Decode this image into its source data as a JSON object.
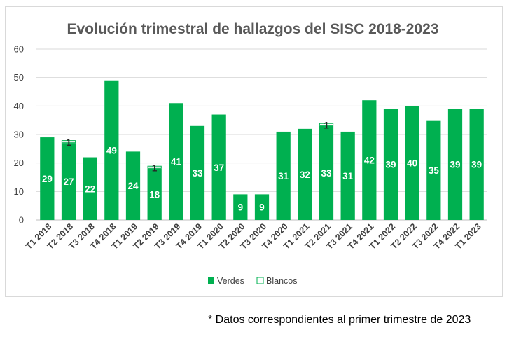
{
  "chart_data": {
    "type": "bar",
    "stacked": true,
    "title": "Evolución trimestral de hallazgos del SISC 2018-2023",
    "xlabel": "",
    "ylabel": "",
    "ylim": [
      0,
      60
    ],
    "yticks": [
      0,
      10,
      20,
      30,
      40,
      50,
      60
    ],
    "grid": true,
    "legend_position": "bottom",
    "categories": [
      "T1 2018",
      "T2 2018",
      "T3 2018",
      "T4 2018",
      "T1 2019",
      "T2 2019",
      "T3 2019",
      "T4 2019",
      "T1 2020",
      "T2 2020",
      "T3 2020",
      "T4 2020",
      "T1 2021",
      "T2 2021",
      "T3 2021",
      "T4 2021",
      "T1 2022",
      "T2 2022",
      "T3 2022",
      "T4 2022",
      "T1 2023"
    ],
    "series": [
      {
        "name": "Verdes",
        "color": "#00b050",
        "values": [
          29,
          27,
          22,
          49,
          24,
          18,
          41,
          33,
          37,
          9,
          9,
          31,
          32,
          33,
          31,
          42,
          39,
          40,
          35,
          39,
          39
        ],
        "labels": [
          "29",
          "27",
          "22",
          "49",
          "24",
          "18",
          "41",
          "33",
          "37",
          "9",
          "9",
          "31",
          "32",
          "33",
          "31",
          "42",
          "39",
          "40",
          "35",
          "39",
          "39"
        ]
      },
      {
        "name": "Blancos",
        "color": "#ffffff",
        "border": "#00b050",
        "values": [
          0,
          1,
          0,
          0,
          0,
          1,
          0,
          0,
          0,
          0,
          0,
          0,
          0,
          1,
          0,
          0,
          0,
          0,
          0,
          0,
          0
        ],
        "labels": [
          "",
          "1",
          "",
          "",
          "",
          "1",
          "",
          "",
          "",
          "",
          "",
          "",
          "",
          "1",
          "",
          "",
          "",
          "",
          "",
          "",
          ""
        ]
      }
    ]
  },
  "footnote": "* Datos correspondientes al primer trimestre de 2023"
}
